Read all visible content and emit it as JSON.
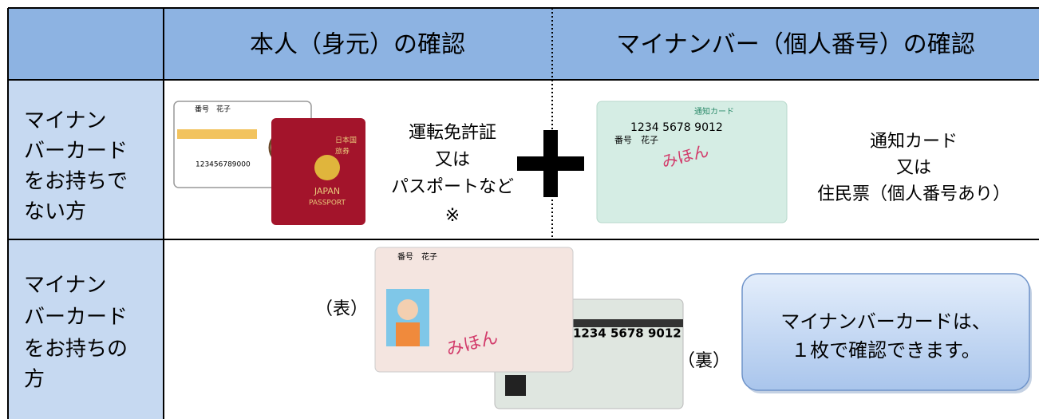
{
  "header": {
    "columns": [
      "本人（身元）の確認",
      "マイナンバー（個人番号）の確認"
    ]
  },
  "rows": [
    {
      "label": [
        "マイナン",
        "バーカード",
        "をお持ちで",
        "ない方"
      ],
      "identity": [
        "運転免許証",
        "又は",
        "パスポートなど",
        "※"
      ],
      "number": [
        "通知カード",
        "又は",
        "住民票（個人番号あり）"
      ]
    },
    {
      "label": [
        "マイナン",
        "バーカード",
        "をお持ちの",
        "方"
      ],
      "front": "（表）",
      "back": "（裏）",
      "callout": [
        "マイナンバーカードは、",
        "１枚で確認できます。"
      ]
    }
  ],
  "images": {
    "license": {
      "name": "番号　花子",
      "number": "123456789000"
    },
    "passport": [
      "日本国",
      "旅券",
      "JAPAN",
      "PASSPORT"
    ],
    "notice_card": {
      "title": "通知カード",
      "number": "1234 5678 9012",
      "name": "番号　花子",
      "stamp": "みほん"
    },
    "mynumber_card": {
      "name": "番号　花子",
      "number": "1234 5678 9012",
      "stamp": "みほん"
    }
  }
}
